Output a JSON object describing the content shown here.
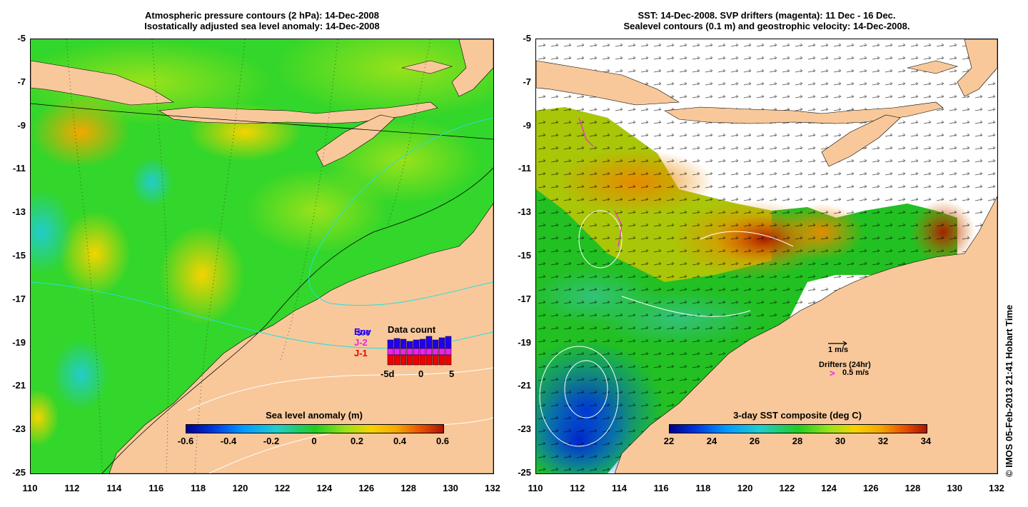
{
  "left_panel": {
    "title_line1": "Atmospheric pressure contours (2 hPa): 14-Dec-2008",
    "title_line2": "Isostatically adjusted sea level anomaly: 14-Dec-2008",
    "colorbar": {
      "title": "Sea level anomaly (m)",
      "ticks": [
        "-0.6",
        "-0.4",
        "-0.2",
        "0",
        "0.2",
        "0.4",
        "0.6"
      ]
    },
    "inset": {
      "title": "Data count",
      "series_labels": [
        "Env",
        "570",
        "J-2",
        "J-1"
      ],
      "x_ticks": [
        "-5d",
        "0",
        "5"
      ],
      "colors": {
        "Env": "#2200ee",
        "J-2": "#ee22ee",
        "J-1": "#ee0000"
      }
    }
  },
  "right_panel": {
    "title_line1": "SST: 14-Dec-2008. SVP drifters (magenta): 11 Dec - 16 Dec.",
    "title_line2": "Sealevel contours (0.1 m) and geostrophic velocity: 14-Dec-2008.",
    "colorbar": {
      "title": "3-day SST composite (deg C)",
      "ticks": [
        "22",
        "24",
        "26",
        "28",
        "30",
        "32",
        "34"
      ]
    },
    "legend": {
      "velocity": "1 m/s",
      "drifters_title": "Drifters (24hr)",
      "drifters_scale": "0.5 m/s",
      "drifter_symbol": ">"
    }
  },
  "axes": {
    "x_ticks": [
      "110",
      "112",
      "114",
      "116",
      "118",
      "120",
      "122",
      "124",
      "126",
      "128",
      "130",
      "132"
    ],
    "y_ticks": [
      "-5",
      "-7",
      "-9",
      "-11",
      "-13",
      "-15",
      "-17",
      "-19",
      "-21",
      "-23",
      "-25"
    ],
    "lon_range": [
      110,
      132
    ],
    "lat_range": [
      -25,
      -5
    ]
  },
  "credit": "© IMOS 05-Feb-2013 21:41 Hobart Time",
  "colors": {
    "land": "#f8c89a",
    "ocean_base": "#22cc22",
    "background": "#ffffff"
  }
}
